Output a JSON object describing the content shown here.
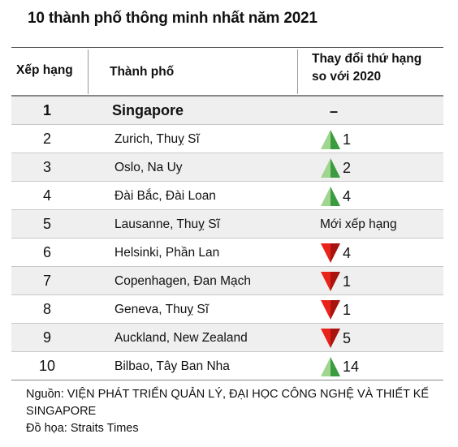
{
  "title": "10 thành phố thông minh nhất năm 2021",
  "headers": {
    "rank": "Xếp hạng",
    "city": "Thành phố",
    "change_line1": "Thay đổi thứ hạng",
    "change_line2": "so với 2020"
  },
  "colors": {
    "up": "#3a9c3f",
    "up_light": "#9fd58f",
    "down": "#e8231a",
    "down_dark": "#a8130d",
    "row_alt": "#efefef"
  },
  "chart_data": {
    "type": "table",
    "title": "10 thành phố thông minh nhất năm 2021",
    "columns": [
      "Xếp hạng",
      "Thành phố",
      "Thay đổi thứ hạng so với 2020"
    ],
    "rows": [
      {
        "rank": "1",
        "city": "Singapore",
        "direction": "none",
        "change": "–"
      },
      {
        "rank": "2",
        "city": "Zurich, Thuỵ Sĩ",
        "direction": "up",
        "change": "1"
      },
      {
        "rank": "3",
        "city": "Oslo, Na Uy",
        "direction": "up",
        "change": "2"
      },
      {
        "rank": "4",
        "city": "Đài Bắc, Đài Loan",
        "direction": "up",
        "change": "4"
      },
      {
        "rank": "5",
        "city": "Lausanne, Thuỵ Sĩ",
        "direction": "new",
        "change": "Mới xếp hạng"
      },
      {
        "rank": "6",
        "city": "Helsinki, Phần Lan",
        "direction": "down",
        "change": "4"
      },
      {
        "rank": "7",
        "city": "Copenhagen, Đan Mạch",
        "direction": "down",
        "change": "1"
      },
      {
        "rank": "8",
        "city": "Geneva, Thuỵ Sĩ",
        "direction": "down",
        "change": "1"
      },
      {
        "rank": "9",
        "city": "Auckland, New Zealand",
        "direction": "down",
        "change": "5"
      },
      {
        "rank": "10",
        "city": "Bilbao, Tây Ban Nha",
        "direction": "up",
        "change": "14"
      }
    ]
  },
  "footer": {
    "source": "Nguồn: VIỆN PHÁT TRIỂN QUẢN LÝ, ĐẠI HỌC CÔNG NGHỆ VÀ THIẾT KẾ SINGAPORE",
    "graphic": "Đồ họa: Straits Times"
  }
}
